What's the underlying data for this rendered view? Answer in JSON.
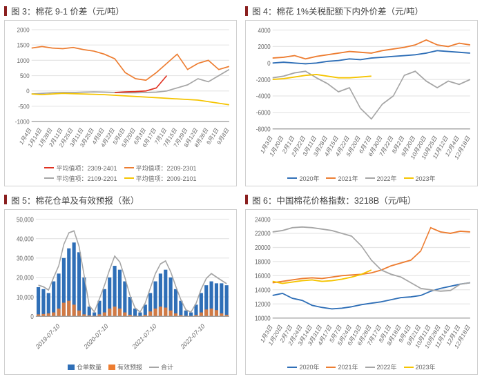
{
  "palette": {
    "red": "#e03020",
    "orange": "#ed7d31",
    "gray": "#a6a6a6",
    "yellow": "#f5c400",
    "blue": "#2f6fb7",
    "grid": "#e6e6e6",
    "axis": "#999999",
    "title_bar": "#8a1f1f"
  },
  "chart3": {
    "title": "图 3：棉花 9-1 价差（元/吨）",
    "type": "line",
    "ylim": [
      -1000,
      2000
    ],
    "ytick_step": 500,
    "x_labels": [
      "1月4日",
      "1月14日",
      "1月28日",
      "2月11日",
      "2月25日",
      "3月11日",
      "3月25日",
      "4月8日",
      "4月22日",
      "5月6日",
      "5月20日",
      "6月3日",
      "6月17日",
      "7月1日",
      "7月15日",
      "7月29日",
      "8月12日",
      "8月26日",
      "9月1日",
      "9月8日"
    ],
    "legend": [
      {
        "label": "平均值项：2309-2401",
        "color": "#e03020"
      },
      {
        "label": "平均值项：2209-2301",
        "color": "#ed7d31"
      },
      {
        "label": "平均值项：2109-2201",
        "color": "#a6a6a6"
      },
      {
        "label": "平均值项：2009-2101",
        "color": "#f5c400"
      }
    ],
    "series": {
      "s1_red": [
        null,
        null,
        null,
        null,
        null,
        null,
        null,
        null,
        -50,
        -30,
        -20,
        0,
        100,
        500,
        null,
        null,
        null,
        null,
        null,
        null
      ],
      "s2_orange": [
        1400,
        1450,
        1400,
        1380,
        1420,
        1350,
        1300,
        1200,
        1050,
        600,
        400,
        350,
        600,
        900,
        1200,
        700,
        900,
        1000,
        700,
        800
      ],
      "s3_gray": [
        -100,
        -80,
        -60,
        -50,
        -50,
        -40,
        -30,
        -40,
        -50,
        -60,
        -60,
        -50,
        -40,
        0,
        100,
        200,
        400,
        300,
        500,
        700
      ],
      "s4_yellow": [
        -100,
        -120,
        -100,
        -80,
        -90,
        -100,
        -110,
        -120,
        -140,
        -160,
        -180,
        -200,
        -220,
        -240,
        -260,
        -280,
        -300,
        -350,
        -400,
        -450
      ]
    },
    "line_width": 1.5,
    "grid_color": "#e6e6e6",
    "background_color": "#ffffff",
    "label_fontsize": 8
  },
  "chart4": {
    "title": "图 4：棉花 1%关税配额下内外价差（元/吨）",
    "type": "line",
    "ylim": [
      -8000,
      4000
    ],
    "ytick_step": 2000,
    "x_labels": [
      "1月3日",
      "1月20日",
      "2月1日",
      "2月22日",
      "3月11日",
      "3月28日",
      "4月15日",
      "4月22日",
      "5月20日",
      "6月7日",
      "6月30日",
      "7月22日",
      "8月2日",
      "9月20日",
      "10月20日",
      "10月25日",
      "11月12日",
      "12月4日",
      "12月18日"
    ],
    "legend": [
      {
        "label": "2020年",
        "color": "#2f6fb7"
      },
      {
        "label": "2021年",
        "color": "#ed7d31"
      },
      {
        "label": "2022年",
        "color": "#a6a6a6"
      },
      {
        "label": "2023年",
        "color": "#f5c400"
      }
    ],
    "series": {
      "s_blue": [
        0,
        100,
        0,
        -100,
        0,
        200,
        300,
        500,
        400,
        600,
        700,
        800,
        900,
        1000,
        1200,
        1500,
        1400,
        1300,
        1200
      ],
      "s_orange": [
        600,
        700,
        900,
        500,
        800,
        1000,
        1200,
        1400,
        1300,
        1200,
        1500,
        1700,
        1900,
        2200,
        2800,
        2200,
        2000,
        2400,
        2200
      ],
      "s_gray": [
        -1800,
        -1600,
        -1200,
        -1000,
        -1800,
        -2500,
        -3500,
        -3000,
        -5500,
        -6800,
        -5000,
        -4000,
        -1500,
        -1000,
        -2200,
        -3000,
        -2200,
        -2600,
        -2000
      ],
      "s_yellow": [
        -2000,
        -1900,
        -1700,
        -1500,
        -1400,
        -1600,
        -1800,
        -1800,
        -1700,
        -1600,
        null,
        null,
        null,
        null,
        null,
        null,
        null,
        null,
        null
      ]
    },
    "line_width": 1.5,
    "grid_color": "#e6e6e6",
    "background_color": "#ffffff",
    "label_fontsize": 8
  },
  "chart5": {
    "title": "图 5：棉花仓单及有效预报（张）",
    "type": "bar+line",
    "ylim": [
      0,
      50000
    ],
    "ytick_step": 10000,
    "x_labels": [
      "2019-07-10",
      "2020-07-10",
      "2021-07-10",
      "2022-07-10"
    ],
    "legend": [
      {
        "label": "仓单数量",
        "color": "#2f6fb7",
        "shape": "box"
      },
      {
        "label": "有效预报",
        "color": "#ed7d31",
        "shape": "box"
      },
      {
        "label": "合计",
        "color": "#a6a6a6",
        "shape": "line"
      }
    ],
    "bars_blue": [
      15000,
      14000,
      12000,
      18000,
      22000,
      30000,
      35000,
      38000,
      33000,
      20000,
      5000,
      2000,
      8000,
      14000,
      20000,
      26000,
      24000,
      18000,
      10000,
      4000,
      2000,
      6000,
      12000,
      18000,
      22000,
      24000,
      20000,
      14000,
      8000,
      3000,
      2000,
      6000,
      12000,
      16000,
      18000,
      17000,
      17000,
      16000
    ],
    "bars_orange": [
      1000,
      1200,
      1500,
      2000,
      4000,
      7000,
      8000,
      6000,
      3000,
      1000,
      500,
      300,
      1000,
      2000,
      4000,
      5000,
      4000,
      2000,
      800,
      300,
      200,
      800,
      2500,
      4000,
      5000,
      4500,
      3000,
      1500,
      600,
      300,
      200,
      700,
      2000,
      3500,
      4000,
      3200,
      1500,
      800
    ],
    "line_gray": [
      16000,
      15200,
      13500,
      20000,
      26000,
      37000,
      43000,
      44000,
      36000,
      21000,
      5500,
      2300,
      9000,
      16000,
      24000,
      31000,
      28000,
      20000,
      10800,
      4300,
      2200,
      6800,
      14500,
      22000,
      27000,
      28500,
      23000,
      15500,
      8600,
      3300,
      2200,
      6700,
      14000,
      19500,
      22000,
      20200,
      18500,
      16800
    ],
    "bar_width": 0.7,
    "line_width": 1.5,
    "grid_color": "#e6e6e6",
    "background_color": "#ffffff",
    "label_fontsize": 8
  },
  "chart6": {
    "title": "图 6：中国棉花价格指数：3218B（元/吨）",
    "type": "line",
    "ylim": [
      10000,
      24000
    ],
    "ytick_step": 2000,
    "x_labels": [
      "1月3日",
      "1月20日",
      "2月7日",
      "2月24日",
      "3月14日",
      "3月31日",
      "4月17日",
      "5月7日",
      "5月24日",
      "6月13日",
      "6月28日",
      "7月17日",
      "8月1日",
      "8月18日",
      "9月4日",
      "9月21日",
      "10月11日",
      "10月28日",
      "11月14日",
      "12月1日",
      "12月18日"
    ],
    "legend": [
      {
        "label": "2020年",
        "color": "#2f6fb7"
      },
      {
        "label": "2021年",
        "color": "#ed7d31"
      },
      {
        "label": "2022年",
        "color": "#a6a6a6"
      },
      {
        "label": "2023年",
        "color": "#f5c400"
      }
    ],
    "series": {
      "s_blue": [
        13200,
        13500,
        12800,
        12500,
        11800,
        11500,
        11300,
        11400,
        11600,
        11900,
        12100,
        12300,
        12600,
        12900,
        13000,
        13200,
        13800,
        14200,
        14500,
        14800,
        15000
      ],
      "s_orange": [
        15000,
        15200,
        15400,
        15600,
        15700,
        15600,
        15800,
        16000,
        16100,
        16200,
        16400,
        16800,
        17400,
        17800,
        18200,
        19500,
        22800,
        22200,
        22000,
        22300,
        22200
      ],
      "s_gray": [
        22200,
        22400,
        22800,
        22900,
        22800,
        22600,
        22400,
        22000,
        21600,
        20200,
        18200,
        16800,
        16200,
        15800,
        15000,
        14200,
        14000,
        13800,
        13900,
        14800,
        15000
      ],
      "s_yellow": [
        15200,
        14900,
        15100,
        15300,
        15400,
        15200,
        15300,
        15500,
        15800,
        16200,
        16800,
        null,
        null,
        null,
        null,
        null,
        null,
        null,
        null,
        null,
        null
      ]
    },
    "line_width": 1.5,
    "grid_color": "#e6e6e6",
    "background_color": "#ffffff",
    "label_fontsize": 8
  }
}
